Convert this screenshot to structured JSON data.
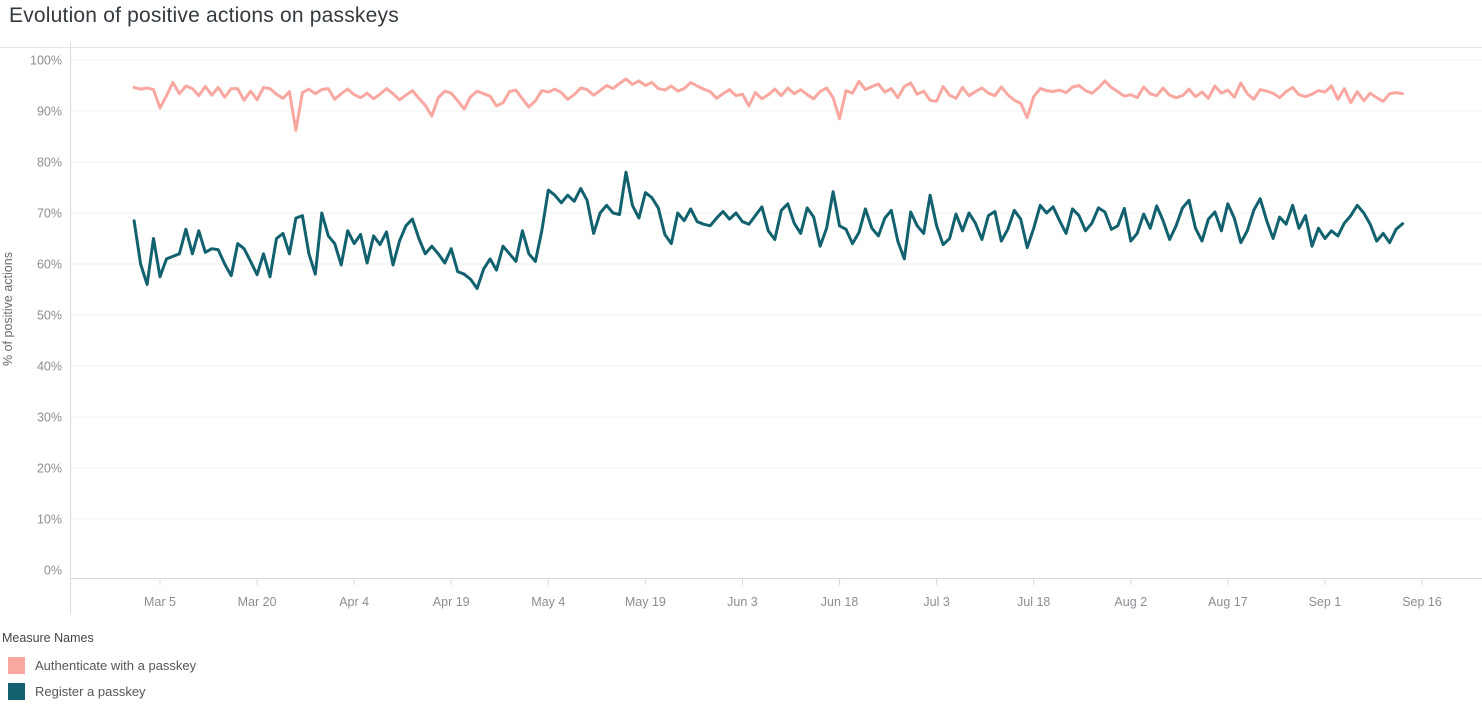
{
  "title": "Evolution of positive actions on passkeys",
  "chart_data": {
    "type": "line",
    "title": "Evolution of positive actions on passkeys",
    "y_axis_title": "% of positive actions",
    "y_range": [
      0,
      100
    ],
    "y_tick_values": [
      0,
      10,
      20,
      30,
      40,
      50,
      60,
      70,
      80,
      90,
      100
    ],
    "y_tick_labels": [
      "0%",
      "10%",
      "20%",
      "30%",
      "40%",
      "50%",
      "60%",
      "70%",
      "80%",
      "90%",
      "100%"
    ],
    "x_tick_labels": [
      "Mar 5",
      "Mar 20",
      "Apr 4",
      "Apr 19",
      "May 4",
      "May 19",
      "Jun 3",
      "Jun 18",
      "Jul 3",
      "Jul 18",
      "Aug 2",
      "Aug 17",
      "Sep 1",
      "Sep 16"
    ],
    "x_tick_day_index": [
      4,
      19,
      34,
      49,
      64,
      79,
      94,
      109,
      124,
      139,
      154,
      169,
      184,
      199
    ],
    "x_start_date": "Mar 1",
    "x_end_date": "Sep 13",
    "cadence": "daily",
    "grid": "horizontal",
    "legend_position": "bottom-left",
    "series": [
      {
        "name": "Authenticate with a passkey",
        "color": "#f8a8a0",
        "values": [
          94.6,
          94.3,
          94.5,
          94.2,
          90.6,
          93.0,
          95.6,
          93.4,
          94.9,
          94.4,
          93.0,
          94.8,
          93.1,
          94.6,
          92.7,
          94.4,
          94.4,
          92.1,
          93.9,
          92.2,
          94.6,
          94.4,
          93.3,
          92.5,
          93.8,
          86.2,
          93.6,
          94.3,
          93.4,
          94.2,
          94.4,
          92.3,
          93.4,
          94.3,
          93.2,
          92.6,
          93.5,
          92.4,
          93.3,
          94.4,
          93.4,
          92.2,
          93.1,
          94.0,
          92.5,
          91.1,
          89.0,
          92.6,
          93.9,
          93.5,
          92.0,
          90.4,
          92.8,
          93.9,
          93.4,
          92.9,
          91.0,
          91.6,
          93.8,
          94.1,
          92.4,
          90.8,
          92.0,
          94.0,
          93.7,
          94.3,
          93.6,
          92.3,
          93.2,
          94.5,
          94.2,
          93.1,
          94.0,
          95.0,
          94.4,
          95.4,
          96.3,
          95.2,
          95.9,
          95.0,
          95.6,
          94.4,
          94.1,
          94.9,
          93.9,
          94.4,
          95.6,
          94.9,
          94.3,
          93.8,
          92.5,
          93.4,
          94.2,
          93.0,
          93.3,
          91.0,
          93.6,
          92.4,
          93.2,
          94.3,
          93.0,
          94.5,
          93.4,
          94.2,
          93.2,
          92.4,
          93.8,
          94.5,
          92.6,
          88.5,
          94.0,
          93.5,
          95.8,
          94.2,
          94.8,
          95.3,
          93.7,
          94.4,
          92.6,
          94.8,
          95.5,
          93.3,
          93.9,
          92.1,
          91.9,
          94.8,
          93.1,
          92.5,
          94.6,
          93.0,
          93.8,
          94.5,
          93.5,
          93.0,
          94.7,
          93.2,
          92.1,
          91.5,
          88.7,
          92.8,
          94.4,
          94.0,
          93.8,
          94.1,
          93.6,
          94.7,
          95.0,
          94.0,
          93.5,
          94.5,
          95.9,
          94.6,
          93.8,
          92.9,
          93.2,
          92.6,
          94.7,
          93.4,
          93.0,
          94.5,
          93.1,
          92.6,
          93.0,
          94.3,
          92.8,
          93.7,
          92.5,
          94.9,
          93.5,
          94.1,
          92.7,
          95.5,
          93.4,
          92.3,
          94.2,
          93.9,
          93.5,
          92.6,
          93.8,
          94.6,
          93.2,
          92.8,
          93.3,
          94.0,
          93.7,
          94.9,
          92.3,
          94.4,
          91.6,
          93.8,
          92.0,
          93.5,
          92.6,
          91.9,
          93.4,
          93.6,
          93.4
        ]
      },
      {
        "name": "Register a passkey",
        "color": "#11616e",
        "values": [
          68.5,
          60.0,
          56.0,
          65.0,
          57.5,
          61.0,
          61.5,
          62.0,
          66.8,
          62.0,
          66.5,
          62.3,
          63.0,
          62.8,
          60.0,
          57.7,
          64.0,
          63.0,
          60.5,
          57.9,
          62.0,
          57.5,
          65.0,
          66.0,
          62.0,
          69.0,
          69.5,
          62.0,
          58.0,
          70.0,
          65.5,
          64.0,
          59.8,
          66.5,
          64.0,
          65.8,
          60.2,
          65.5,
          63.8,
          66.3,
          59.8,
          64.5,
          67.5,
          68.8,
          65.0,
          62.0,
          63.5,
          62.0,
          60.2,
          63.0,
          58.5,
          58.0,
          57.0,
          55.2,
          59.0,
          61.0,
          58.8,
          63.5,
          62.0,
          60.5,
          66.5,
          62.0,
          60.5,
          66.5,
          74.5,
          73.5,
          72.0,
          73.5,
          72.3,
          74.8,
          72.5,
          66.0,
          70.0,
          71.5,
          70.0,
          69.7,
          78.0,
          71.5,
          69.0,
          74.0,
          73.0,
          71.0,
          65.8,
          64.0,
          70.0,
          68.5,
          70.8,
          68.3,
          67.8,
          67.5,
          69.0,
          70.3,
          68.8,
          70.0,
          68.3,
          67.8,
          69.5,
          71.2,
          66.5,
          64.8,
          70.5,
          71.8,
          68.0,
          66.0,
          71.0,
          69.2,
          63.5,
          67.0,
          74.2,
          67.5,
          66.8,
          64.0,
          66.2,
          70.8,
          67.0,
          65.5,
          69.0,
          70.5,
          64.5,
          61.0,
          70.2,
          67.5,
          66.0,
          73.5,
          67.5,
          63.8,
          65.0,
          69.8,
          66.5,
          70.0,
          68.0,
          64.8,
          69.5,
          70.3,
          64.5,
          66.8,
          70.5,
          68.8,
          63.2,
          67.0,
          71.5,
          70.0,
          71.2,
          68.5,
          66.0,
          70.8,
          69.5,
          66.5,
          68.0,
          71.0,
          70.2,
          66.8,
          67.5,
          70.9,
          64.5,
          66.0,
          69.8,
          67.0,
          71.4,
          68.5,
          64.8,
          67.5,
          71.0,
          72.5,
          67.0,
          64.5,
          68.8,
          70.2,
          66.5,
          71.8,
          69.0,
          64.2,
          66.5,
          70.5,
          72.8,
          68.5,
          65.0,
          69.2,
          67.8,
          71.5,
          67.0,
          69.5,
          63.5,
          67.0,
          65.0,
          66.5,
          65.5,
          68.0,
          69.5,
          71.5,
          70.0,
          67.8,
          64.5,
          66.0,
          64.2,
          66.8,
          67.9
        ]
      }
    ],
    "colors": {
      "axis_text": "#8a8e92",
      "grid_line": "#f0f0f0",
      "axis_line": "#d9d9d9",
      "plot_border": "#e4e4e4"
    }
  },
  "legend": {
    "title": "Measure Names",
    "items": [
      {
        "label": "Authenticate with a passkey",
        "color": "#f8a8a0"
      },
      {
        "label": "Register a passkey",
        "color": "#11616e"
      }
    ]
  }
}
